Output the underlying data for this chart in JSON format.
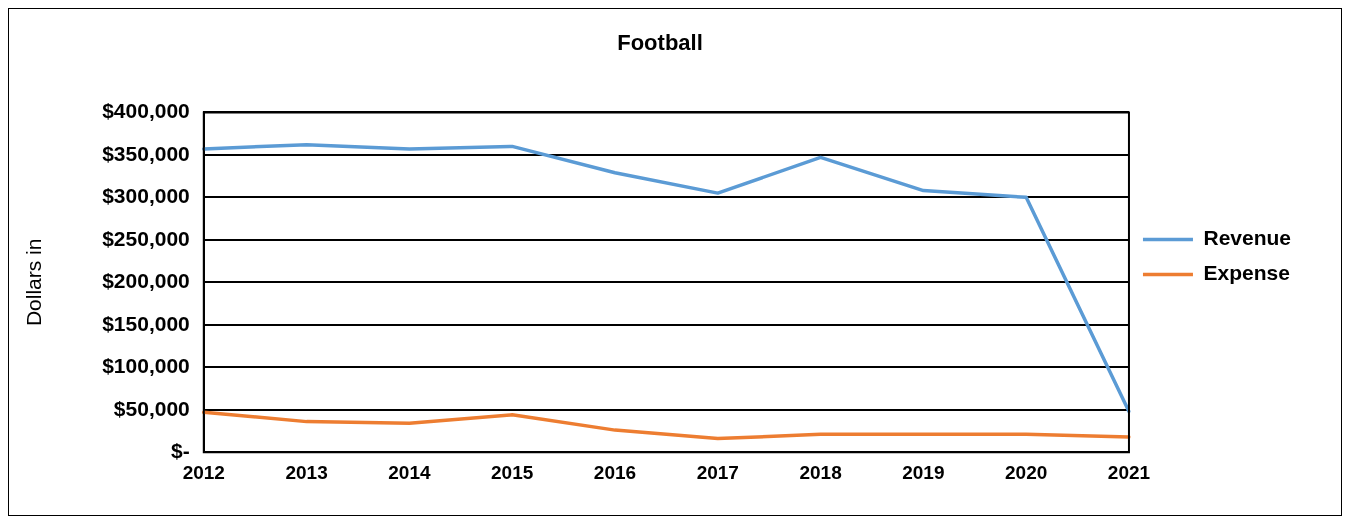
{
  "chart_data": {
    "type": "line",
    "title": "Football",
    "ylabel": "Dollars in",
    "categories": [
      "2012",
      "2013",
      "2014",
      "2015",
      "2016",
      "2017",
      "2018",
      "2019",
      "2020",
      "2021"
    ],
    "series": [
      {
        "name": "Revenue",
        "color": "#5b9bd5",
        "values": [
          357000,
          362000,
          357000,
          360000,
          329000,
          305000,
          347000,
          308000,
          300000,
          48000
        ]
      },
      {
        "name": "Expense",
        "color": "#ed7d31",
        "values": [
          47000,
          36000,
          34000,
          44000,
          26000,
          16000,
          21000,
          21000,
          21000,
          18000
        ]
      }
    ],
    "ylim": [
      0,
      400000
    ],
    "yticks": [
      {
        "value": 0,
        "label": "$-"
      },
      {
        "value": 50000,
        "label": "$50,000"
      },
      {
        "value": 100000,
        "label": "$100,000"
      },
      {
        "value": 150000,
        "label": "$150,000"
      },
      {
        "value": 200000,
        "label": "$200,000"
      },
      {
        "value": 250000,
        "label": "$250,000"
      },
      {
        "value": 300000,
        "label": "$300,000"
      },
      {
        "value": 350000,
        "label": "$350,000"
      },
      {
        "value": 400000,
        "label": "$400,000"
      }
    ],
    "grid": "y",
    "legend": "right",
    "marker": "none",
    "line_style": "solid"
  }
}
